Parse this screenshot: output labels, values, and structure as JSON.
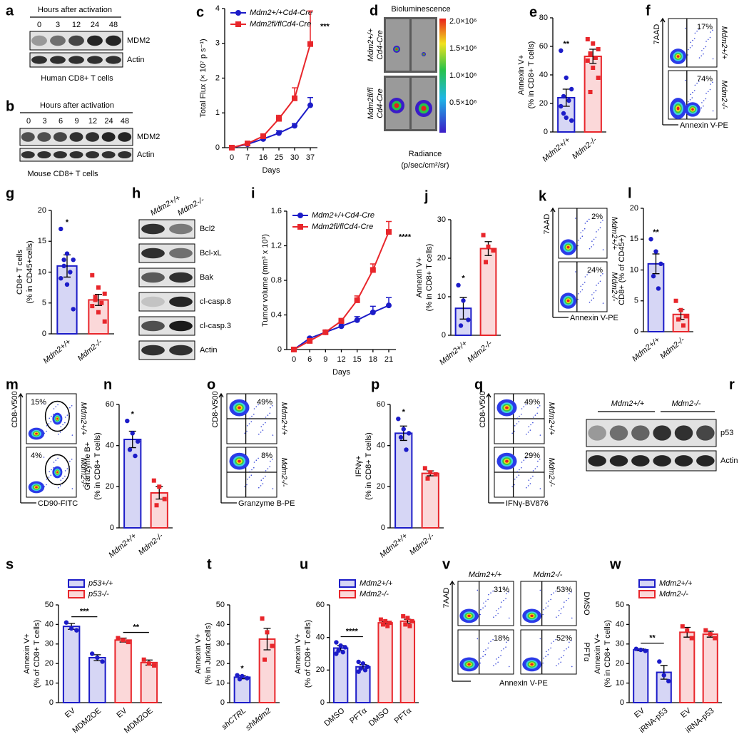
{
  "chart_data": [
    {
      "type": "line",
      "label": "c",
      "categories": [
        "0",
        "7",
        "16",
        "25",
        "30",
        "37"
      ],
      "ylim": [
        0,
        4
      ],
      "yticks": [
        0,
        1,
        2,
        3,
        4
      ],
      "ylabel": [
        "Total Flux (× 10⁷ p s⁻¹)"
      ],
      "xlabel": "Days",
      "legend": "upper left",
      "annotations": [
        "***"
      ],
      "series": [
        {
          "name": "Mdm2+/+Cd4-Cre",
          "color": "#1c1cc8",
          "values": [
            0,
            0.1,
            0.25,
            0.42,
            0.63,
            1.22
          ],
          "errors": [
            0,
            0.02,
            0.03,
            0.07,
            0.06,
            0.22
          ]
        },
        {
          "name": "Mdm2fl/flCd4-Cre",
          "color": "#e8262b",
          "values": [
            0,
            0.12,
            0.33,
            0.83,
            1.42,
            2.98
          ],
          "errors": [
            0,
            0.03,
            0.04,
            0.1,
            0.3,
            0.95
          ]
        }
      ]
    },
    {
      "type": "bar",
      "label": "e",
      "categories": [
        "Mdm2+/+",
        "Mdm2-/-"
      ],
      "values": [
        24,
        53
      ],
      "errors": [
        6,
        5
      ],
      "colors": [
        "#1c1cc8",
        "#e8262b"
      ],
      "ylim": [
        0,
        80
      ],
      "yticks": [
        0,
        20,
        40,
        60,
        80
      ],
      "ylabel": [
        "Annexin V+",
        "(% in CD8+ T cells)"
      ],
      "annotations": [
        "**"
      ],
      "points": [
        [
          57,
          38,
          30,
          25,
          22,
          18,
          10,
          8,
          13
        ],
        [
          65,
          62,
          58,
          55,
          52,
          50,
          45,
          38,
          28
        ]
      ]
    },
    {
      "type": "bar",
      "label": "g",
      "categories": [
        "Mdm2+/+",
        "Mdm2-/-"
      ],
      "values": [
        11,
        5.5
      ],
      "errors": [
        1.8,
        0.9
      ],
      "colors": [
        "#1c1cc8",
        "#e8262b"
      ],
      "ylim": [
        0,
        20
      ],
      "yticks": [
        0,
        5,
        10,
        15,
        20
      ],
      "ylabel": [
        "CD8+ T cells",
        "(% in CD45+cells)"
      ],
      "annotations": [
        "*"
      ],
      "points": [
        [
          17,
          13,
          12,
          11,
          10,
          9,
          8,
          4,
          12
        ],
        [
          9.5,
          7.5,
          6.5,
          5.5,
          5,
          4.5,
          3.5,
          2,
          6
        ]
      ]
    },
    {
      "type": "line",
      "label": "i",
      "categories": [
        "0",
        "6",
        "9",
        "12",
        "15",
        "18",
        "21"
      ],
      "ylim": [
        0,
        1.6
      ],
      "yticks": [
        0,
        0.4,
        0.8,
        1.2,
        1.6
      ],
      "ylabel": [
        "Tumor volume (mm³ x 10³)"
      ],
      "xlabel": "Days",
      "legend": "upper left",
      "annotations": [
        "****"
      ],
      "series": [
        {
          "name": "Mdm2+/+Cd4-Cre",
          "color": "#1c1cc8",
          "values": [
            0,
            0.13,
            0.2,
            0.27,
            0.34,
            0.43,
            0.51
          ],
          "errors": [
            0,
            0.01,
            0.02,
            0.03,
            0.04,
            0.07,
            0.09
          ]
        },
        {
          "name": "Mdm2fl/flCd4-Cre",
          "color": "#e8262b",
          "values": [
            0,
            0.1,
            0.2,
            0.33,
            0.57,
            0.92,
            1.36
          ],
          "errors": [
            0,
            0.01,
            0.02,
            0.03,
            0.05,
            0.07,
            0.12
          ]
        }
      ]
    },
    {
      "type": "bar",
      "label": "j",
      "categories": [
        "Mdm2+/+",
        "Mdm2-/-"
      ],
      "values": [
        7,
        22.5
      ],
      "errors": [
        2.8,
        1.8
      ],
      "colors": [
        "#1c1cc8",
        "#e8262b"
      ],
      "ylim": [
        0,
        30
      ],
      "yticks": [
        0,
        10,
        20,
        30
      ],
      "ylabel": [
        "Annexin V+",
        "(% in CD8+ T cells)"
      ],
      "annotations": [
        "*"
      ],
      "points": [
        [
          13,
          9,
          4,
          2.5
        ],
        [
          26,
          23,
          22,
          19
        ]
      ]
    },
    {
      "type": "bar",
      "label": "l",
      "categories": [
        "Mdm2+/+",
        "Mdm2-/-"
      ],
      "values": [
        11,
        2.8
      ],
      "errors": [
        1.6,
        0.8
      ],
      "colors": [
        "#1c1cc8",
        "#e8262b"
      ],
      "ylim": [
        0,
        20
      ],
      "yticks": [
        0,
        5,
        10,
        15,
        20
      ],
      "ylabel": [
        "CD8+ (% of CD45+)"
      ],
      "annotations": [
        "**"
      ],
      "points": [
        [
          15,
          13,
          11,
          9,
          7
        ],
        [
          5,
          3.5,
          2.5,
          2,
          1
        ]
      ]
    },
    {
      "type": "bar",
      "label": "n",
      "categories": [
        "Mdm2+/+",
        "Mdm2-/-"
      ],
      "values": [
        43,
        17
      ],
      "errors": [
        4,
        3
      ],
      "colors": [
        "#1c1cc8",
        "#e8262b"
      ],
      "ylim": [
        0,
        60
      ],
      "yticks": [
        0,
        20,
        40,
        60
      ],
      "ylabel": [
        "Granzyme B+",
        "(% in CD8+ T cells)"
      ],
      "annotations": [
        "*"
      ],
      "points": [
        [
          52,
          46,
          42,
          38,
          35
        ],
        [
          23,
          20,
          14,
          11
        ]
      ]
    },
    {
      "type": "bar",
      "label": "p",
      "categories": [
        "Mdm2+/+",
        "Mdm2-/-"
      ],
      "values": [
        46,
        26.5
      ],
      "errors": [
        3.5,
        1.2
      ],
      "colors": [
        "#1c1cc8",
        "#e8262b"
      ],
      "ylim": [
        0,
        60
      ],
      "yticks": [
        0,
        20,
        40,
        60
      ],
      "ylabel": [
        "IFNγ+",
        "(% in CD8+ T cells)"
      ],
      "annotations": [
        "*"
      ],
      "points": [
        [
          53,
          48,
          46,
          44,
          38
        ],
        [
          29,
          27,
          26,
          24
        ]
      ]
    },
    {
      "type": "bar",
      "label": "s",
      "categories": [
        "EV",
        "MDM2OE",
        "EV",
        "MDM2OE"
      ],
      "ylim": [
        0,
        50
      ],
      "yticks": [
        0,
        10,
        20,
        30,
        40,
        50
      ],
      "ylabel": [
        "Annexin V+",
        "(% of CD8+ T cells)"
      ],
      "annotations": [
        "***",
        "**"
      ],
      "series": [
        {
          "name": "p53+/+",
          "color": "#1c1cc8",
          "values": [
            39,
            23,
            null,
            null
          ],
          "errors": [
            1.5,
            1.5,
            null,
            null
          ],
          "points": [
            [
              41,
              38,
              37
            ],
            [
              25,
              23,
              21
            ],
            null,
            null
          ]
        },
        {
          "name": "p53-/-",
          "color": "#e8262b",
          "values": [
            null,
            null,
            32,
            20.5
          ],
          "errors": [
            null,
            null,
            1,
            1.3
          ],
          "points": [
            null,
            null,
            [
              33,
              32,
              31
            ],
            [
              22,
              20,
              19
            ]
          ]
        }
      ]
    },
    {
      "type": "bar",
      "label": "t",
      "categories": [
        "shCTRL",
        "shMdm2"
      ],
      "values": [
        13,
        32.5
      ],
      "errors": [
        0.8,
        5.5
      ],
      "colors": [
        "#1c1cc8",
        "#e8262b"
      ],
      "ylim": [
        0,
        50
      ],
      "yticks": [
        0,
        10,
        20,
        30,
        40,
        50
      ],
      "ylabel": [
        "Annexin V+",
        "(% in Jurkat cells)"
      ],
      "annotations": [
        "*"
      ],
      "points": [
        [
          14,
          13.5,
          12.5,
          12
        ],
        [
          43,
          36,
          29,
          22
        ]
      ]
    },
    {
      "type": "bar",
      "label": "u",
      "categories": [
        "DMSO",
        "PFTα",
        "DMSO",
        "PFTα"
      ],
      "ylim": [
        0,
        60
      ],
      "yticks": [
        0,
        20,
        40,
        60
      ],
      "ylabel": [
        "Annexin V+",
        "(% of CD8+ T cells)"
      ],
      "annotations": [
        "****"
      ],
      "series": [
        {
          "name": "Mdm2+/+",
          "color": "#1c1cc8",
          "values": [
            33.5,
            22,
            null,
            null
          ],
          "errors": [
            1.5,
            1.3,
            null,
            null
          ],
          "points": [
            [
              37,
              35,
              34,
              32,
              31,
              30
            ],
            [
              25,
              24,
              22,
              21,
              20,
              19
            ],
            null,
            null
          ]
        },
        {
          "name": "Mdm2-/-",
          "color": "#e8262b",
          "values": [
            null,
            null,
            49,
            50
          ],
          "errors": [
            null,
            null,
            0.8,
            1.2
          ],
          "points": [
            null,
            null,
            [
              51,
              50,
              49,
              48,
              47
            ],
            [
              53,
              52,
              50,
              48,
              47
            ]
          ]
        }
      ]
    },
    {
      "type": "bar",
      "label": "w",
      "categories": [
        "EV",
        "iRNA-p53",
        "EV",
        "iRNA-p53"
      ],
      "ylim": [
        0,
        50
      ],
      "yticks": [
        0,
        10,
        20,
        30,
        40,
        50
      ],
      "ylabel": [
        "Annexin V+",
        "(% in CD8+ T cells)"
      ],
      "annotations": [
        "**"
      ],
      "series": [
        {
          "name": "Mdm2+/+",
          "color": "#1c1cc8",
          "values": [
            27,
            15.5,
            null,
            null
          ],
          "errors": [
            0.5,
            3.5,
            null,
            null
          ],
          "points": [
            [
              27.5,
              27,
              26.5
            ],
            [
              21,
              14,
              11
            ],
            null,
            null
          ]
        },
        {
          "name": "Mdm2-/-",
          "color": "#e8262b",
          "values": [
            null,
            null,
            36,
            35
          ],
          "errors": [
            null,
            null,
            2.5,
            1.5
          ],
          "points": [
            null,
            null,
            [
              39,
              37,
              33
            ],
            [
              37,
              35,
              33
            ]
          ]
        }
      ]
    }
  ],
  "panels": {
    "a": {
      "label": "a",
      "header": "Hours after activation",
      "lanes": [
        "0",
        "3",
        "12",
        "24",
        "48"
      ],
      "rows": [
        "MDM2",
        "Actin"
      ],
      "caption": "Human CD8+ T cells"
    },
    "b": {
      "label": "b",
      "header": "Hours after activation",
      "lanes": [
        "0",
        "3",
        "6",
        "9",
        "12",
        "24",
        "48"
      ],
      "rows": [
        "MDM2",
        "Actin"
      ],
      "caption": "Mouse CD8+ T cells"
    },
    "d": {
      "label": "d",
      "title": "Bioluminescence",
      "groups": [
        [
          "Mdm2+/+",
          "Cd4-Cre"
        ],
        [
          "Mdm2fl/fl",
          "Cd4-Cre"
        ]
      ],
      "scale": [
        "2.0×10⁶",
        "1.5×10⁶",
        "1.0×10⁶",
        "0.5×10⁶"
      ],
      "caption": [
        "Radiance",
        "(p/sec/cm²/sr)"
      ]
    },
    "f": {
      "label": "f",
      "y": "7AAD",
      "x": "Annexin V-PE",
      "plots": [
        {
          "pct": "17%",
          "group": "Mdm2+/+"
        },
        {
          "pct": "74%",
          "group": "Mdm2-/-"
        }
      ]
    },
    "h": {
      "label": "h",
      "lanes": [
        "Mdm2+/+",
        "Mdm2-/-"
      ],
      "rows": [
        "Bcl2",
        "Bcl-xL",
        "Bak",
        "cl-casp.8",
        "cl-casp.3",
        "Actin"
      ]
    },
    "k": {
      "label": "k",
      "y": "7AAD",
      "x": "Annexin V-PE",
      "plots": [
        {
          "pct": "2%",
          "group": "Mdm2+/+"
        },
        {
          "pct": "24%",
          "group": "Mdm2-/-"
        }
      ]
    },
    "m": {
      "label": "m",
      "y": "CD8-V500",
      "x": "CD90-FITC",
      "plots": [
        {
          "pct": "15%",
          "group": "Mdm2+/+"
        },
        {
          "pct": "4%",
          "group": "Mdm2-/-"
        }
      ]
    },
    "o": {
      "label": "o",
      "y": "CD8-V500",
      "x": "Granzyme B-PE",
      "plots": [
        {
          "pct": "49%",
          "group": "Mdm2+/+"
        },
        {
          "pct": "8%",
          "group": "Mdm2-/-"
        }
      ]
    },
    "q": {
      "label": "q",
      "y": "CD8-V500",
      "x": "IFNγ-BV876",
      "plots": [
        {
          "pct": "49%",
          "group": "Mdm2+/+"
        },
        {
          "pct": "29%",
          "group": "Mdm2-/-"
        }
      ]
    },
    "r": {
      "label": "r",
      "groups": [
        "Mdm2+/+",
        "Mdm2-/-"
      ],
      "rows": [
        "p53",
        "Actin"
      ]
    },
    "v": {
      "label": "v",
      "y": "7AAD",
      "x": "Annexin V-PE",
      "columns": [
        "Mdm2+/+",
        "Mdm2-/-"
      ],
      "rows": [
        "DMSO",
        "PFTα"
      ],
      "pcts": [
        [
          "31%",
          "53%"
        ],
        [
          "18%",
          "52%"
        ]
      ]
    }
  }
}
